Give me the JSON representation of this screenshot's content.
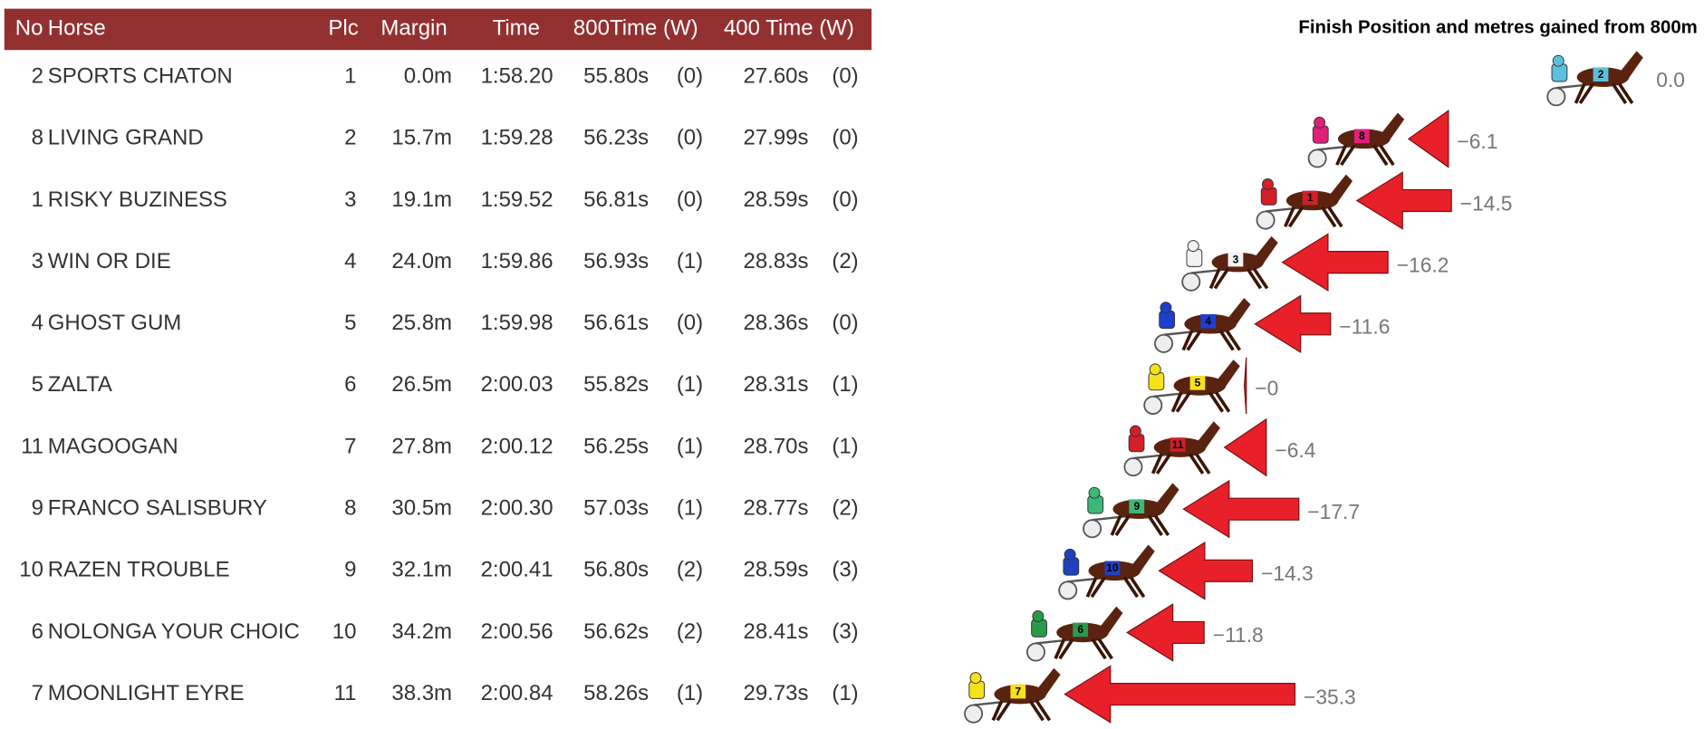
{
  "table": {
    "headers": [
      "No",
      "Horse",
      "Plc",
      "Margin",
      "Time",
      "800Time (W)",
      "400 Time (W)"
    ],
    "rows": [
      [
        "2",
        "SPORTS CHATON",
        "1",
        "0.0m",
        "1:58.20",
        "55.80s",
        "(0)",
        "27.60s",
        "(0)"
      ],
      [
        "8",
        "LIVING GRAND",
        "2",
        "15.7m",
        "1:59.28",
        "56.23s",
        "(0)",
        "27.99s",
        "(0)"
      ],
      [
        "1",
        "RISKY BUZINESS",
        "3",
        "19.1m",
        "1:59.52",
        "56.81s",
        "(0)",
        "28.59s",
        "(0)"
      ],
      [
        "3",
        "WIN OR DIE",
        "4",
        "24.0m",
        "1:59.86",
        "56.93s",
        "(1)",
        "28.83s",
        "(2)"
      ],
      [
        "4",
        "GHOST GUM",
        "5",
        "25.8m",
        "1:59.98",
        "56.61s",
        "(0)",
        "28.36s",
        "(0)"
      ],
      [
        "5",
        "ZALTA",
        "6",
        "26.5m",
        "2:00.03",
        "55.82s",
        "(1)",
        "28.31s",
        "(1)"
      ],
      [
        "11",
        "MAGOOGAN",
        "7",
        "27.8m",
        "2:00.12",
        "56.25s",
        "(1)",
        "28.70s",
        "(1)"
      ],
      [
        "9",
        "FRANCO SALISBURY",
        "8",
        "30.5m",
        "2:00.30",
        "57.03s",
        "(1)",
        "28.77s",
        "(2)"
      ],
      [
        "10",
        "RAZEN TROUBLE",
        "9",
        "32.1m",
        "2:00.41",
        "56.80s",
        "(2)",
        "28.59s",
        "(3)"
      ],
      [
        "6",
        "NOLONGA YOUR CHOIC",
        "10",
        "34.2m",
        "2:00.56",
        "56.62s",
        "(2)",
        "28.41s",
        "(3)"
      ],
      [
        "7",
        "MOONLIGHT EYRE",
        "11",
        "38.3m",
        "2:00.84",
        "58.26s",
        "(1)",
        "29.73s",
        "(1)"
      ]
    ]
  },
  "chart": {
    "title": "Finish Position and metres gained from 800m",
    "values": [
      0.0,
      -6.1,
      -14.5,
      -16.2,
      -11.6,
      -0.3,
      -6.4,
      -17.7,
      -14.3,
      -11.8,
      -35.3
    ],
    "value_labels": [
      "0.0",
      "−6.1",
      "−14.5",
      "−16.2",
      "−11.6",
      "−0",
      "−6.4",
      "−17.7",
      "−14.3",
      "−11.8",
      "−35.3"
    ],
    "arrow_color": "#e8202a",
    "driver_colors": [
      "#5bc0de",
      "#e0207a",
      "#d21f2a",
      "#f2f2f2",
      "#1d3fcf",
      "#f5e21a",
      "#d21f2a",
      "#3cb878",
      "#2040c0",
      "#2a9a4a",
      "#f5e21a"
    ]
  }
}
